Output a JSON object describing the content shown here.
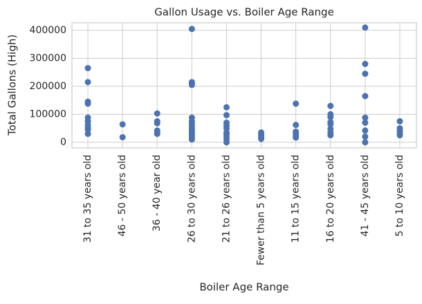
{
  "chart_data": {
    "type": "scatter",
    "title": "Gallon Usage vs. Boiler Age Range",
    "x_label": "Boiler Age Range",
    "y_label": "Total Gallons (High)",
    "categories": [
      "31 to 35 years old",
      "46 - 50 years old",
      "36 - 40 year old",
      "26 to 30 years old",
      "21 to 26 years old",
      "Fewer than 5 years old",
      "11 to 15 years old",
      "16 to 20 years old",
      "41 - 45 years old",
      "5 to 10 years old"
    ],
    "series": [
      {
        "color": "#4c72b0",
        "x": [
          "31 to 35 years old",
          "31 to 35 years old",
          "31 to 35 years old",
          "31 to 35 years old",
          "31 to 35 years old",
          "31 to 35 years old",
          "31 to 35 years old",
          "31 to 35 years old",
          "31 to 35 years old",
          "31 to 35 years old",
          "46 - 50 years old",
          "46 - 50 years old",
          "36 - 40 year old",
          "36 - 40 year old",
          "36 - 40 year old",
          "36 - 40 year old",
          "36 - 40 year old",
          "36 - 40 year old",
          "26 to 30 years old",
          "26 to 30 years old",
          "26 to 30 years old",
          "26 to 30 years old",
          "26 to 30 years old",
          "26 to 30 years old",
          "26 to 30 years old",
          "26 to 30 years old",
          "26 to 30 years old",
          "26 to 30 years old",
          "26 to 30 years old",
          "26 to 30 years old",
          "26 to 30 years old",
          "26 to 30 years old",
          "21 to 26 years old",
          "21 to 26 years old",
          "21 to 26 years old",
          "21 to 26 years old",
          "21 to 26 years old",
          "21 to 26 years old",
          "21 to 26 years old",
          "21 to 26 years old",
          "21 to 26 years old",
          "21 to 26 years old",
          "Fewer than 5 years old",
          "Fewer than 5 years old",
          "Fewer than 5 years old",
          "Fewer than 5 years old",
          "Fewer than 5 years old",
          "11 to 15 years old",
          "11 to 15 years old",
          "11 to 15 years old",
          "11 to 15 years old",
          "11 to 15 years old",
          "11 to 15 years old",
          "16 to 20 years old",
          "16 to 20 years old",
          "16 to 20 years old",
          "16 to 20 years old",
          "16 to 20 years old",
          "16 to 20 years old",
          "16 to 20 years old",
          "16 to 20 years old",
          "41 - 45 years old",
          "41 - 45 years old",
          "41 - 45 years old",
          "41 - 45 years old",
          "41 - 45 years old",
          "41 - 45 years old",
          "41 - 45 years old",
          "41 - 45 years old",
          "41 - 45 years old",
          "5 to 10 years old",
          "5 to 10 years old",
          "5 to 10 years old",
          "5 to 10 years old",
          "5 to 10 years old"
        ],
        "values": [
          265000,
          215000,
          145000,
          138000,
          88000,
          75000,
          62000,
          52000,
          45000,
          30000,
          64000,
          18000,
          103000,
          75000,
          68000,
          42000,
          35000,
          30000,
          405000,
          215000,
          210000,
          205000,
          88000,
          75000,
          65000,
          55000,
          45000,
          38000,
          30000,
          22000,
          15000,
          10000,
          125000,
          97000,
          70000,
          60000,
          50000,
          35000,
          28000,
          20000,
          10000,
          0,
          35000,
          28000,
          22000,
          15000,
          12000,
          138000,
          62000,
          38000,
          30000,
          22000,
          17000,
          130000,
          100000,
          90000,
          72000,
          65000,
          48000,
          35000,
          25000,
          410000,
          280000,
          245000,
          165000,
          88000,
          70000,
          42000,
          20000,
          0,
          75000,
          50000,
          40000,
          30000,
          25000
        ]
      }
    ],
    "ylim": [
      -20000,
      427000
    ],
    "yticks": [
      0,
      100000,
      200000,
      300000,
      400000
    ],
    "grid": true
  }
}
